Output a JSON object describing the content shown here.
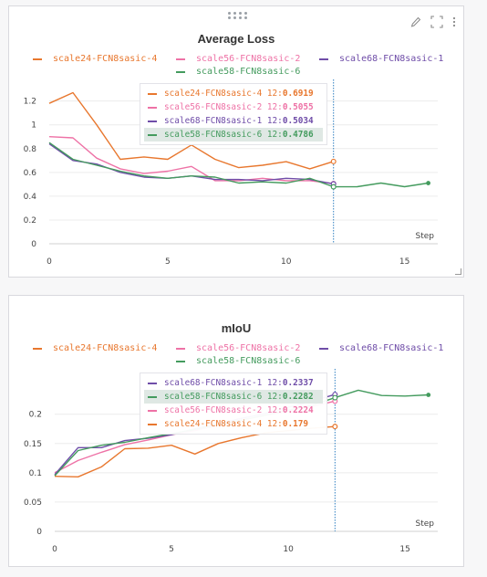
{
  "colors": {
    "s24": "#e8772e",
    "s56": "#ee72a6",
    "s68": "#6f4da8",
    "s58": "#449b5e"
  },
  "icons": [
    "drag-handle-icon",
    "edit-pencil-icon",
    "fullscreen-icon",
    "more-options-icon",
    "resize-handle-icon"
  ],
  "chart_data": [
    {
      "type": "line",
      "title": "Average Loss",
      "xlabel": "Step",
      "ylabel": "",
      "xlim": [
        0,
        16.4
      ],
      "ylim": [
        0,
        1.32
      ],
      "xticks": [
        "0",
        "5",
        "10",
        "15"
      ],
      "xtick_values": [
        0,
        5,
        10,
        15
      ],
      "yticks": [
        "0",
        "0.2",
        "0.4",
        "0.6",
        "0.8",
        "1",
        "1.2"
      ],
      "ytick_values": [
        0,
        0.2,
        0.4,
        0.6,
        0.8,
        1,
        1.2
      ],
      "grid": true,
      "legend": "top",
      "hover_step": 12,
      "series": [
        {
          "name": "scale24-FCN8sasic-4",
          "color": "#e8772e",
          "x": [
            0,
            1,
            2,
            3,
            4,
            5,
            6,
            7,
            8,
            9,
            10,
            11,
            12
          ],
          "y": [
            1.18,
            1.27,
            1.0,
            0.71,
            0.73,
            0.71,
            0.83,
            0.71,
            0.64,
            0.66,
            0.69,
            0.63,
            0.6919
          ]
        },
        {
          "name": "scale56-FCN8sasic-2",
          "color": "#ee72a6",
          "x": [
            0,
            1,
            2,
            3,
            4,
            5,
            6,
            7,
            8,
            9,
            10,
            11,
            12
          ],
          "y": [
            0.9,
            0.89,
            0.72,
            0.63,
            0.59,
            0.61,
            0.65,
            0.53,
            0.53,
            0.55,
            0.53,
            0.53,
            0.5055
          ]
        },
        {
          "name": "scale68-FCN8sasic-1",
          "color": "#6f4da8",
          "x": [
            0,
            1,
            2,
            3,
            4,
            5,
            6,
            7,
            8,
            9,
            10,
            11,
            12
          ],
          "y": [
            0.84,
            0.7,
            0.67,
            0.6,
            0.56,
            0.55,
            0.57,
            0.54,
            0.54,
            0.53,
            0.55,
            0.54,
            0.5034
          ]
        },
        {
          "name": "scale58-FCN8sasic-6",
          "color": "#449b5e",
          "x": [
            0,
            1,
            2,
            3,
            4,
            5,
            6,
            7,
            8,
            9,
            10,
            11,
            12,
            13,
            14,
            15,
            16
          ],
          "y": [
            0.85,
            0.71,
            0.66,
            0.61,
            0.57,
            0.55,
            0.57,
            0.56,
            0.51,
            0.52,
            0.51,
            0.55,
            0.4786,
            0.48,
            0.51,
            0.48,
            0.51
          ]
        }
      ],
      "tooltip": {
        "step": "12",
        "rows": [
          {
            "name": "scale24-FCN8sasic-4",
            "step_label": "12:",
            "value": "0.6919",
            "color": "#e8772e",
            "highlight": false
          },
          {
            "name": "scale56-FCN8sasic-2",
            "step_label": "12:",
            "value": "0.5055",
            "color": "#ee72a6",
            "highlight": false
          },
          {
            "name": "scale68-FCN8sasic-1",
            "step_label": "12:",
            "value": "0.5034",
            "color": "#6f4da8",
            "highlight": false
          },
          {
            "name": "scale58-FCN8sasic-6",
            "step_label": "12:",
            "value": "0.4786",
            "color": "#449b5e",
            "highlight": true
          }
        ]
      }
    },
    {
      "type": "line",
      "title": "mIoU",
      "xlabel": "Step",
      "ylabel": "",
      "xlim": [
        0,
        16.4
      ],
      "ylim": [
        0,
        0.265
      ],
      "xticks": [
        "0",
        "5",
        "10",
        "15"
      ],
      "xtick_values": [
        0,
        5,
        10,
        15
      ],
      "yticks": [
        "0",
        "0.05",
        "0.1",
        "0.15",
        "0.2"
      ],
      "ytick_values": [
        0,
        0.05,
        0.1,
        0.15,
        0.2
      ],
      "grid": true,
      "legend": "top",
      "hover_step": 12,
      "series": [
        {
          "name": "scale24-FCN8sasic-4",
          "color": "#e8772e",
          "x": [
            0,
            1,
            2,
            3,
            4,
            5,
            6,
            7,
            8,
            9,
            10,
            11,
            12
          ],
          "y": [
            0.094,
            0.093,
            0.11,
            0.141,
            0.142,
            0.147,
            0.132,
            0.15,
            0.16,
            0.168,
            0.172,
            0.176,
            0.179
          ]
        },
        {
          "name": "scale56-FCN8sasic-2",
          "color": "#ee72a6",
          "x": [
            0,
            1,
            2,
            3,
            4,
            5,
            6,
            7,
            8,
            9,
            10,
            11,
            12
          ],
          "y": [
            0.1,
            0.121,
            0.135,
            0.148,
            0.156,
            0.165,
            0.172,
            0.181,
            0.19,
            0.198,
            0.205,
            0.213,
            0.2224
          ]
        },
        {
          "name": "scale68-FCN8sasic-1",
          "color": "#6f4da8",
          "x": [
            0,
            1,
            2,
            3,
            4,
            5,
            6,
            7,
            8,
            9,
            10,
            11,
            12
          ],
          "y": [
            0.097,
            0.143,
            0.143,
            0.155,
            0.159,
            0.165,
            0.175,
            0.184,
            0.193,
            0.201,
            0.212,
            0.222,
            0.2337
          ]
        },
        {
          "name": "scale58-FCN8sasic-6",
          "color": "#449b5e",
          "x": [
            0,
            1,
            2,
            3,
            4,
            5,
            6,
            7,
            8,
            9,
            10,
            11,
            12,
            13,
            14,
            15,
            16
          ],
          "y": [
            0.095,
            0.138,
            0.147,
            0.152,
            0.16,
            0.167,
            0.174,
            0.182,
            0.19,
            0.198,
            0.207,
            0.215,
            0.2282,
            0.241,
            0.232,
            0.231,
            0.233
          ]
        }
      ],
      "tooltip": {
        "step": "12",
        "rows": [
          {
            "name": "scale68-FCN8sasic-1",
            "step_label": "12:",
            "value": "0.2337",
            "color": "#6f4da8",
            "highlight": false
          },
          {
            "name": "scale58-FCN8sasic-6",
            "step_label": "12:",
            "value": "0.2282",
            "color": "#449b5e",
            "highlight": true
          },
          {
            "name": "scale56-FCN8sasic-2",
            "step_label": "12:",
            "value": "0.2224",
            "color": "#ee72a6",
            "highlight": false
          },
          {
            "name": "scale24-FCN8sasic-4",
            "step_label": "12:",
            "value": "0.179",
            "color": "#e8772e",
            "highlight": false
          }
        ]
      }
    }
  ],
  "legend_items": [
    {
      "name": "scale24-FCN8sasic-4",
      "color": "#e8772e"
    },
    {
      "name": "scale56-FCN8sasic-2",
      "color": "#ee72a6"
    },
    {
      "name": "scale68-FCN8sasic-1",
      "color": "#6f4da8"
    },
    {
      "name": "scale58-FCN8sasic-6",
      "color": "#449b5e"
    }
  ]
}
